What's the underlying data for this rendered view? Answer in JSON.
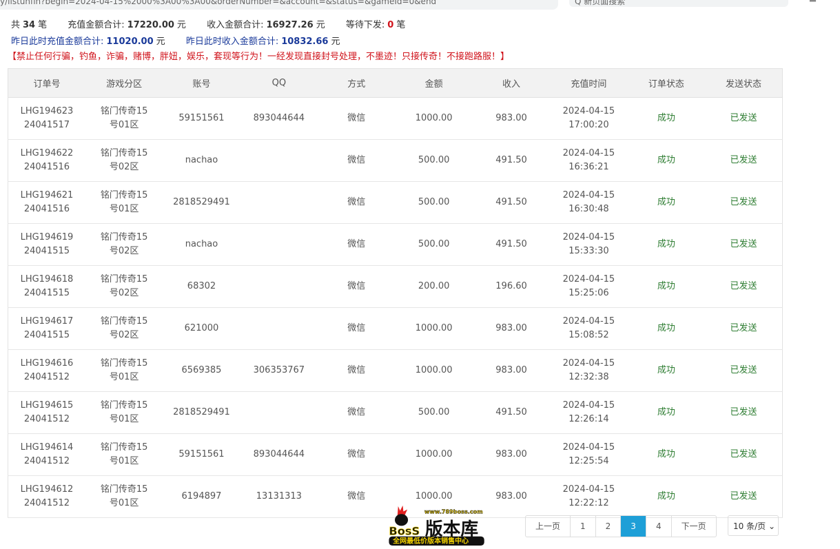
{
  "browser": {
    "url_partial": "y/listunfin?begin=2024-04-15%2000%3A00%3A00&orderNumber=&account=&status=&gameId=0&end",
    "search_placeholder": "Q 新页面搜索"
  },
  "summary": {
    "total_label": "共",
    "total": "34",
    "total_unit": "笔",
    "recharge_label": "充值金额合计:",
    "recharge": "17220.00",
    "yuan": "元",
    "income_label": "收入金额合计:",
    "income": "16927.26",
    "pending_label": "等待下发:",
    "pending": "0",
    "pending_unit": "笔",
    "y_recharge_label": "昨日此时充值金额合计:",
    "y_recharge": "11020.00",
    "y_income_label": "昨日此时收入金额合计:",
    "y_income": "10832.66"
  },
  "warning": "【禁止任何行骗，钓鱼，诈骗，赌博，胖妞，娱乐，套现等行为！一经发现直接封号处理，不墨迹！只接传奇！不接跑路服！】",
  "table": {
    "headers": [
      "订单号",
      "游戏分区",
      "账号",
      "QQ",
      "方式",
      "金额",
      "收入",
      "充值时间",
      "订单状态",
      "发送状态"
    ],
    "rows": [
      [
        "LHG194623",
        "24041517",
        "铭门传奇15",
        "号01区",
        "59151561",
        "893044644",
        "微信",
        "1000.00",
        "983.00",
        "2024-04-15",
        "17:00:20",
        "成功",
        "已发送"
      ],
      [
        "LHG194622",
        "24041516",
        "铭门传奇15",
        "号02区",
        "nachao",
        "",
        "微信",
        "500.00",
        "491.50",
        "2024-04-15",
        "16:36:21",
        "成功",
        "已发送"
      ],
      [
        "LHG194621",
        "24041516",
        "铭门传奇15",
        "号01区",
        "2818529491",
        "",
        "微信",
        "500.00",
        "491.50",
        "2024-04-15",
        "16:30:48",
        "成功",
        "已发送"
      ],
      [
        "LHG194619",
        "24041515",
        "铭门传奇15",
        "号02区",
        "nachao",
        "",
        "微信",
        "500.00",
        "491.50",
        "2024-04-15",
        "15:33:30",
        "成功",
        "已发送"
      ],
      [
        "LHG194618",
        "24041515",
        "铭门传奇15",
        "号02区",
        "68302",
        "",
        "微信",
        "200.00",
        "196.60",
        "2024-04-15",
        "15:25:06",
        "成功",
        "已发送"
      ],
      [
        "LHG194617",
        "24041515",
        "铭门传奇15",
        "号02区",
        "621000",
        "",
        "微信",
        "1000.00",
        "983.00",
        "2024-04-15",
        "15:08:52",
        "成功",
        "已发送"
      ],
      [
        "LHG194616",
        "24041512",
        "铭门传奇15",
        "号01区",
        "6569385",
        "306353767",
        "微信",
        "1000.00",
        "983.00",
        "2024-04-15",
        "12:32:38",
        "成功",
        "已发送"
      ],
      [
        "LHG194615",
        "24041512",
        "铭门传奇15",
        "号01区",
        "2818529491",
        "",
        "微信",
        "500.00",
        "491.50",
        "2024-04-15",
        "12:26:14",
        "成功",
        "已发送"
      ],
      [
        "LHG194614",
        "24041512",
        "铭门传奇15",
        "号01区",
        "59151561",
        "893044644",
        "微信",
        "1000.00",
        "983.00",
        "2024-04-15",
        "12:25:54",
        "成功",
        "已发送"
      ],
      [
        "LHG194612",
        "24041512",
        "铭门传奇15",
        "号01区",
        "6194897",
        "13131313",
        "微信",
        "1000.00",
        "983.00",
        "2024-04-15",
        "12:22:12",
        "成功",
        "已发送"
      ]
    ]
  },
  "pagination": {
    "prev": "上一页",
    "pages": [
      "1",
      "2",
      "3",
      "4"
    ],
    "current": "3",
    "next": "下一页",
    "page_size": "10 条/页"
  },
  "watermark": {
    "url": "www.789boss.com",
    "brand": "BOSS版本库",
    "slogan": "全网最低价版本销售中心"
  },
  "colors": {
    "accent": "#1e9fd7",
    "success": "#2e7d32",
    "warning": "#d0131b",
    "yesterday": "#1a3a9a"
  }
}
